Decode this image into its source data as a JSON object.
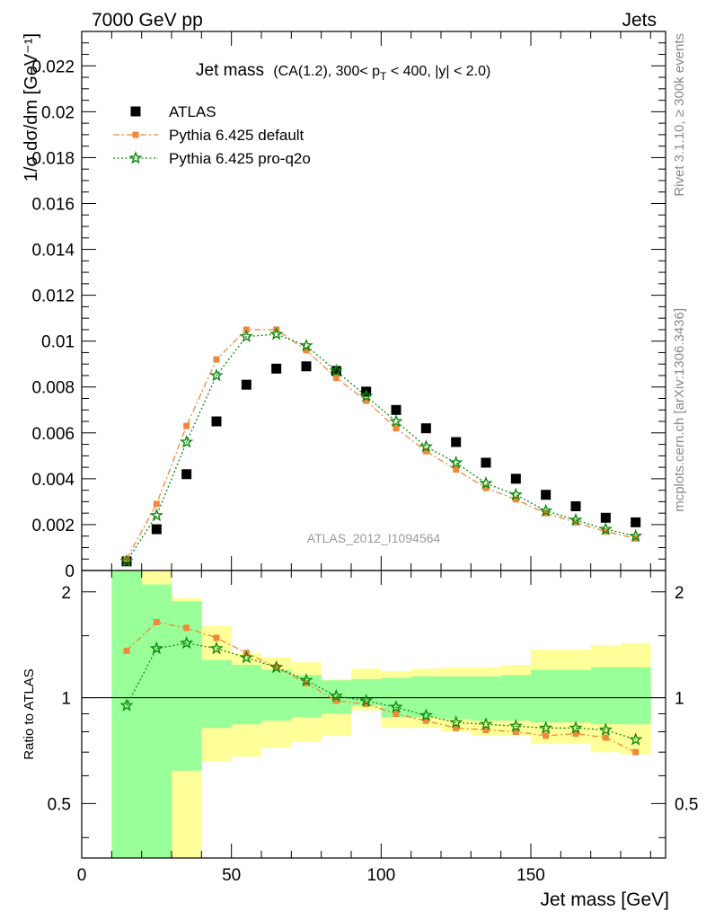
{
  "header": {
    "left": "7000 GeV pp",
    "right": "Jets"
  },
  "side_labels": {
    "rivet": "Rivet 3.1.10, ≥ 300k events",
    "mcplots": "mcplots.cern.ch [arXiv:1306.3436]"
  },
  "colors": {
    "atlas": "#000000",
    "pythia_default": "#f0883a",
    "pythia_pro_q2o": "#0f8a0f",
    "band_inner": "#99ff99",
    "band_outer": "#ffff99",
    "watermark": "#9a9a9a"
  },
  "chart_data": [
    {
      "type": "scatter",
      "title_main": "Jet mass",
      "title_sub": "(CA(1.2), 300< p",
      "title_sub_index": "T",
      "title_sub_rest": " < 400, |y| < 2.0)",
      "ylabel": "1/σ dσ/dm [GeV⁻¹]",
      "watermark": "ATLAS_2012_I1094564",
      "xlim": [
        0,
        195
      ],
      "ylim": [
        0,
        0.0235
      ],
      "y_ticks": [
        {
          "v": 0,
          "label": "0"
        },
        {
          "v": 0.002,
          "label": "0.002"
        },
        {
          "v": 0.004,
          "label": "0.004"
        },
        {
          "v": 0.006,
          "label": "0.006"
        },
        {
          "v": 0.008,
          "label": "0.008"
        },
        {
          "v": 0.01,
          "label": "0.01"
        },
        {
          "v": 0.012,
          "label": "0.012"
        },
        {
          "v": 0.014,
          "label": "0.014"
        },
        {
          "v": 0.016,
          "label": "0.016"
        },
        {
          "v": 0.018,
          "label": "0.018"
        },
        {
          "v": 0.02,
          "label": "0.02"
        },
        {
          "v": 0.022,
          "label": "0.022"
        }
      ],
      "x": [
        15,
        25,
        35,
        45,
        55,
        65,
        75,
        85,
        95,
        105,
        115,
        125,
        135,
        145,
        155,
        165,
        175,
        185
      ],
      "series": [
        {
          "name": "ATLAS",
          "key": "atlas",
          "marker": "square",
          "values": [
            0.0004,
            0.0018,
            0.0042,
            0.0065,
            0.0081,
            0.0088,
            0.0089,
            0.0087,
            0.0078,
            0.007,
            0.0062,
            0.0056,
            0.0047,
            0.004,
            0.0033,
            0.0028,
            0.0023,
            0.0021
          ]
        },
        {
          "name": "Pythia 6.425 default",
          "key": "pythia_default",
          "marker": "square-small",
          "values": [
            0.0005,
            0.0029,
            0.0063,
            0.0092,
            0.0105,
            0.0105,
            0.0096,
            0.0084,
            0.0074,
            0.0062,
            0.0052,
            0.0044,
            0.0036,
            0.0031,
            0.0025,
            0.0021,
            0.0017,
            0.0014
          ]
        },
        {
          "name": "Pythia 6.425 pro-q2o",
          "key": "pythia_pro_q2o",
          "marker": "star",
          "values": [
            0.0004,
            0.0024,
            0.0056,
            0.0085,
            0.0102,
            0.0103,
            0.0098,
            0.0087,
            0.0076,
            0.0065,
            0.0054,
            0.0047,
            0.0038,
            0.0033,
            0.0026,
            0.0022,
            0.0018,
            0.0015
          ]
        }
      ]
    },
    {
      "type": "line",
      "ylabel": "Ratio to ATLAS",
      "xlabel": "Jet mass [GeV]",
      "xlim": [
        0,
        195
      ],
      "ylim": [
        0.35,
        2.3
      ],
      "x_ticks": [
        {
          "v": 0,
          "label": "0"
        },
        {
          "v": 50,
          "label": "50"
        },
        {
          "v": 100,
          "label": "100"
        },
        {
          "v": 150,
          "label": "150"
        }
      ],
      "y_ticks": [
        {
          "v": 0.5,
          "label": "0.5"
        },
        {
          "v": 1,
          "label": "1"
        },
        {
          "v": 2,
          "label": "2"
        }
      ],
      "bin_edges": [
        10,
        20,
        30,
        40,
        50,
        60,
        70,
        80,
        90,
        100,
        110,
        120,
        130,
        140,
        150,
        160,
        170,
        180,
        190
      ],
      "band_outer_lo": [
        0.35,
        0.35,
        0.35,
        0.66,
        0.68,
        0.72,
        0.75,
        0.78,
        0.92,
        0.82,
        0.82,
        0.8,
        0.78,
        0.78,
        0.74,
        0.74,
        0.7,
        0.69
      ],
      "band_outer_hi": [
        2.3,
        2.3,
        1.92,
        1.6,
        1.34,
        1.3,
        1.26,
        1.13,
        1.21,
        1.19,
        1.21,
        1.22,
        1.22,
        1.24,
        1.37,
        1.37,
        1.41,
        1.43
      ],
      "band_inner_lo": [
        0.35,
        0.35,
        0.62,
        0.82,
        0.84,
        0.86,
        0.88,
        0.9,
        0.95,
        0.88,
        0.88,
        0.87,
        0.86,
        0.86,
        0.85,
        0.85,
        0.84,
        0.84
      ],
      "band_inner_hi": [
        2.3,
        2.1,
        1.88,
        1.28,
        1.24,
        1.2,
        1.16,
        1.12,
        1.13,
        1.14,
        1.15,
        1.15,
        1.15,
        1.16,
        1.2,
        1.2,
        1.22,
        1.22
      ],
      "x": [
        15,
        25,
        35,
        45,
        55,
        65,
        75,
        85,
        95,
        105,
        115,
        125,
        135,
        145,
        155,
        165,
        175,
        185
      ],
      "series": [
        {
          "name": "Pythia 6.425 default",
          "key": "pythia_default",
          "marker": "square-small",
          "values": [
            1.36,
            1.64,
            1.58,
            1.48,
            1.34,
            1.22,
            1.1,
            0.98,
            0.96,
            0.9,
            0.86,
            0.82,
            0.81,
            0.8,
            0.78,
            0.79,
            0.77,
            0.7
          ]
        },
        {
          "name": "Pythia 6.425 pro-q2o",
          "key": "pythia_pro_q2o",
          "marker": "star",
          "values": [
            0.95,
            1.38,
            1.43,
            1.38,
            1.3,
            1.22,
            1.12,
            1.01,
            0.98,
            0.94,
            0.89,
            0.85,
            0.84,
            0.83,
            0.82,
            0.82,
            0.81,
            0.76
          ]
        }
      ]
    }
  ]
}
